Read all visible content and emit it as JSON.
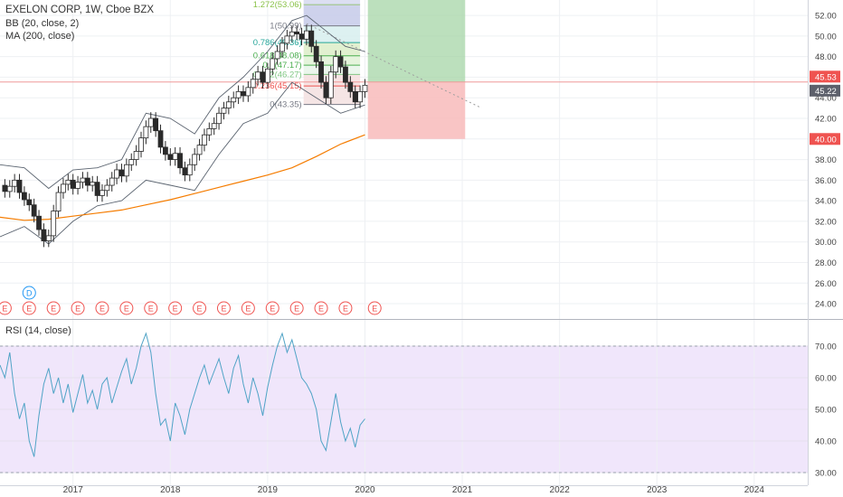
{
  "header": {
    "title": "EXELON CORP, 1W, Cboe BZX",
    "bb_label": "BB (20, close, 2)",
    "ma_label": "MA (200, close)",
    "rsi_label": "RSI (14, close)"
  },
  "colors": {
    "up": "#26a69a",
    "down": "#ef5350",
    "candle": "#2a2a2a",
    "ma": "#f57c00",
    "bb": "#2196f3",
    "rsi": "#4fa3c6",
    "rsi_bg": "#f0e6fb",
    "fib_line": "#7986cb",
    "price_badge": "#ef5350",
    "current_badge": "#5d606b"
  },
  "chart_data": [
    {
      "type": "candlestick",
      "title": "EXELON CORP, 1W, Cboe BZX",
      "x_ticks": [
        "2017",
        "2018",
        "2019",
        "2020",
        "2021",
        "2022",
        "2023",
        "2024"
      ],
      "y_ticks": [
        24.0,
        26.0,
        28.0,
        30.0,
        32.0,
        34.0,
        36.0,
        38.0,
        40.0,
        42.0,
        44.0,
        46.0,
        48.0,
        50.0,
        52.0
      ],
      "ylim": [
        22.6,
        53.5
      ],
      "x_range": [
        2016.25,
        2024.55
      ],
      "price_series": [
        [
          "2016.25",
          35.5
        ],
        [
          "2016.30",
          34.9
        ],
        [
          "2016.35",
          35.4
        ],
        [
          "2016.40",
          36.0
        ],
        [
          "2016.45",
          34.8
        ],
        [
          "2016.50",
          34.1
        ],
        [
          "2016.55",
          33.6
        ],
        [
          "2016.60",
          32.5
        ],
        [
          "2016.65",
          31.2
        ],
        [
          "2016.70",
          30.1
        ],
        [
          "2016.75",
          30.6
        ],
        [
          "2016.80",
          33.0
        ],
        [
          "2016.85",
          34.8
        ],
        [
          "2016.90",
          35.6
        ],
        [
          "2016.95",
          36.0
        ],
        [
          "2017.00",
          35.2
        ],
        [
          "2017.05",
          35.8
        ],
        [
          "2017.10",
          36.2
        ],
        [
          "2017.15",
          35.5
        ],
        [
          "2017.20",
          35.8
        ],
        [
          "2017.25",
          34.5
        ],
        [
          "2017.30",
          35.0
        ],
        [
          "2017.35",
          35.5
        ],
        [
          "2017.40",
          36.2
        ],
        [
          "2017.45",
          37.0
        ],
        [
          "2017.50",
          36.4
        ],
        [
          "2017.55",
          37.5
        ],
        [
          "2017.60",
          38.0
        ],
        [
          "2017.65",
          38.8
        ],
        [
          "2017.70",
          40.1
        ],
        [
          "2017.75",
          41.2
        ],
        [
          "2017.80",
          42.0
        ],
        [
          "2017.85",
          40.8
        ],
        [
          "2017.90",
          39.2
        ],
        [
          "2017.95",
          38.5
        ],
        [
          "2018.00",
          38.0
        ],
        [
          "2018.05",
          38.6
        ],
        [
          "2018.10",
          37.2
        ],
        [
          "2018.15",
          36.5
        ],
        [
          "2018.20",
          37.5
        ],
        [
          "2018.25",
          38.5
        ],
        [
          "2018.30",
          39.4
        ],
        [
          "2018.35",
          40.4
        ],
        [
          "2018.40",
          41.0
        ],
        [
          "2018.45",
          41.5
        ],
        [
          "2018.50",
          42.5
        ],
        [
          "2018.55",
          43.0
        ],
        [
          "2018.60",
          43.6
        ],
        [
          "2018.65",
          44.0
        ],
        [
          "2018.70",
          44.6
        ],
        [
          "2018.75",
          44.2
        ],
        [
          "2018.80",
          45.0
        ],
        [
          "2018.85",
          45.8
        ],
        [
          "2018.90",
          46.5
        ],
        [
          "2018.95",
          45.5
        ],
        [
          "2019.00",
          46.8
        ],
        [
          "2019.05",
          47.8
        ],
        [
          "2019.10",
          48.5
        ],
        [
          "2019.15",
          49.3
        ],
        [
          "2019.20",
          50.0
        ],
        [
          "2019.25",
          50.4
        ],
        [
          "2019.30",
          50.2
        ],
        [
          "2019.35",
          49.7
        ],
        [
          "2019.40",
          50.5
        ],
        [
          "2019.45",
          49.0
        ],
        [
          "2019.50",
          47.5
        ],
        [
          "2019.55",
          45.5
        ],
        [
          "2019.60",
          44.0
        ],
        [
          "2019.65",
          46.5
        ],
        [
          "2019.70",
          48.0
        ],
        [
          "2019.75",
          47.0
        ],
        [
          "2019.80",
          45.5
        ],
        [
          "2019.85",
          44.6
        ],
        [
          "2019.90",
          43.6
        ],
        [
          "2019.95",
          44.6
        ],
        [
          "2020.00",
          45.22
        ]
      ],
      "ma_series": [
        [
          "2016.25",
          32.4
        ],
        [
          "2016.50",
          32.1
        ],
        [
          "2016.75",
          32.2
        ],
        [
          "2017.00",
          32.5
        ],
        [
          "2017.25",
          32.8
        ],
        [
          "2017.50",
          33.1
        ],
        [
          "2017.75",
          33.6
        ],
        [
          "2018.00",
          34.1
        ],
        [
          "2018.25",
          34.7
        ],
        [
          "2018.50",
          35.3
        ],
        [
          "2018.75",
          35.9
        ],
        [
          "2019.00",
          36.5
        ],
        [
          "2019.25",
          37.2
        ],
        [
          "2019.50",
          38.3
        ],
        [
          "2019.75",
          39.5
        ],
        [
          "2020.00",
          40.4
        ]
      ],
      "bb_upper": [
        [
          "2016.25",
          37.5
        ],
        [
          "2016.50",
          37.2
        ],
        [
          "2016.75",
          35.2
        ],
        [
          "2017.00",
          37.0
        ],
        [
          "2017.25",
          37.2
        ],
        [
          "2017.50",
          38.0
        ],
        [
          "2017.75",
          42.5
        ],
        [
          "2018.00",
          42.0
        ],
        [
          "2018.25",
          40.5
        ],
        [
          "2018.50",
          44.0
        ],
        [
          "2018.75",
          46.0
        ],
        [
          "2019.00",
          48.5
        ],
        [
          "2019.25",
          51.5
        ],
        [
          "2019.40",
          52.0
        ],
        [
          "2019.60",
          50.5
        ],
        [
          "2019.80",
          49.0
        ],
        [
          "2020.00",
          48.5
        ]
      ],
      "bb_lower": [
        [
          "2016.25",
          30.5
        ],
        [
          "2016.50",
          31.5
        ],
        [
          "2016.75",
          29.8
        ],
        [
          "2017.00",
          32.0
        ],
        [
          "2017.25",
          33.5
        ],
        [
          "2017.50",
          34.0
        ],
        [
          "2017.75",
          36.0
        ],
        [
          "2018.00",
          35.5
        ],
        [
          "2018.25",
          35.0
        ],
        [
          "2018.50",
          38.5
        ],
        [
          "2018.75",
          41.5
        ],
        [
          "2019.00",
          42.5
        ],
        [
          "2019.25",
          45.5
        ],
        [
          "2019.50",
          44.0
        ],
        [
          "2019.75",
          42.5
        ],
        [
          "2020.00",
          43.3
        ]
      ],
      "fib_levels": [
        {
          "label": "1.272(53.06)",
          "value": 53.06,
          "color": "#8bc34a"
        },
        {
          "label": "1(50.99)",
          "value": 50.99,
          "color": "#787b86"
        },
        {
          "label": "0.786(49.36)",
          "value": 49.36,
          "color": "#26a69a"
        },
        {
          "label": "0.618(48.08)",
          "value": 48.08,
          "color": "#4caf50"
        },
        {
          "label": "0.5(47.17)",
          "value": 47.17,
          "color": "#4caf50"
        },
        {
          "label": "0.382(46.27)",
          "value": 46.27,
          "color": "#81c784"
        },
        {
          "label": "0.236(45.15)",
          "value": 45.15,
          "color": "#ef5350"
        },
        {
          "label": "0(43.35)",
          "value": 43.35,
          "color": "#787b86"
        }
      ],
      "price_labels": [
        {
          "text": "45.53",
          "value": 45.53,
          "style": "line"
        },
        {
          "text": "45.22",
          "value": 45.22,
          "style": "current"
        },
        {
          "text": "40.00",
          "value": 40.0,
          "style": "stop"
        }
      ],
      "earnings_markers": [
        "2016.30",
        "2016.55",
        "2016.80",
        "2017.05",
        "2017.30",
        "2017.55",
        "2017.80",
        "2018.05",
        "2018.30",
        "2018.55",
        "2018.80",
        "2019.05",
        "2019.30",
        "2019.55",
        "2019.80",
        "2020.10"
      ],
      "dividend_marker": "2016.55",
      "earnings_label": "E",
      "dividend_label": "D"
    },
    {
      "type": "line",
      "title": "RSI (14, close)",
      "y_ticks": [
        30.0,
        40.0,
        50.0,
        60.0,
        70.0
      ],
      "ylim": [
        26,
        78
      ],
      "overbought": 70,
      "oversold": 30,
      "series": [
        {
          "values": [
            [
              "2016.25",
              64
            ],
            [
              "2016.30",
              60
            ],
            [
              "2016.35",
              68
            ],
            [
              "2016.40",
              55
            ],
            [
              "2016.45",
              47
            ],
            [
              "2016.50",
              52
            ],
            [
              "2016.55",
              40
            ],
            [
              "2016.60",
              35
            ],
            [
              "2016.65",
              48
            ],
            [
              "2016.70",
              58
            ],
            [
              "2016.75",
              63
            ],
            [
              "2016.80",
              55
            ],
            [
              "2016.85",
              60
            ],
            [
              "2016.90",
              52
            ],
            [
              "2016.95",
              58
            ],
            [
              "2017.00",
              49
            ],
            [
              "2017.05",
              55
            ],
            [
              "2017.10",
              61
            ],
            [
              "2017.15",
              52
            ],
            [
              "2017.20",
              56
            ],
            [
              "2017.25",
              50
            ],
            [
              "2017.30",
              58
            ],
            [
              "2017.35",
              60
            ],
            [
              "2017.40",
              52
            ],
            [
              "2017.45",
              57
            ],
            [
              "2017.50",
              62
            ],
            [
              "2017.55",
              66
            ],
            [
              "2017.60",
              58
            ],
            [
              "2017.65",
              63
            ],
            [
              "2017.70",
              70
            ],
            [
              "2017.75",
              74
            ],
            [
              "2017.80",
              68
            ],
            [
              "2017.85",
              55
            ],
            [
              "2017.90",
              45
            ],
            [
              "2017.95",
              47
            ],
            [
              "2018.00",
              40
            ],
            [
              "2018.05",
              52
            ],
            [
              "2018.10",
              48
            ],
            [
              "2018.15",
              42
            ],
            [
              "2018.20",
              50
            ],
            [
              "2018.25",
              55
            ],
            [
              "2018.30",
              60
            ],
            [
              "2018.35",
              64
            ],
            [
              "2018.40",
              58
            ],
            [
              "2018.45",
              62
            ],
            [
              "2018.50",
              66
            ],
            [
              "2018.55",
              60
            ],
            [
              "2018.60",
              55
            ],
            [
              "2018.65",
              63
            ],
            [
              "2018.70",
              67
            ],
            [
              "2018.75",
              58
            ],
            [
              "2018.80",
              52
            ],
            [
              "2018.85",
              60
            ],
            [
              "2018.90",
              55
            ],
            [
              "2018.95",
              48
            ],
            [
              "2019.00",
              57
            ],
            [
              "2019.05",
              64
            ],
            [
              "2019.10",
              70
            ],
            [
              "2019.15",
              74
            ],
            [
              "2019.20",
              68
            ],
            [
              "2019.25",
              72
            ],
            [
              "2019.30",
              66
            ],
            [
              "2019.35",
              60
            ],
            [
              "2019.40",
              58
            ],
            [
              "2019.45",
              55
            ],
            [
              "2019.50",
              50
            ],
            [
              "2019.55",
              40
            ],
            [
              "2019.60",
              37
            ],
            [
              "2019.65",
              46
            ],
            [
              "2019.70",
              55
            ],
            [
              "2019.75",
              46
            ],
            [
              "2019.80",
              40
            ],
            [
              "2019.85",
              44
            ],
            [
              "2019.90",
              38
            ],
            [
              "2019.95",
              45
            ],
            [
              "2020.00",
              47
            ]
          ]
        }
      ]
    }
  ]
}
